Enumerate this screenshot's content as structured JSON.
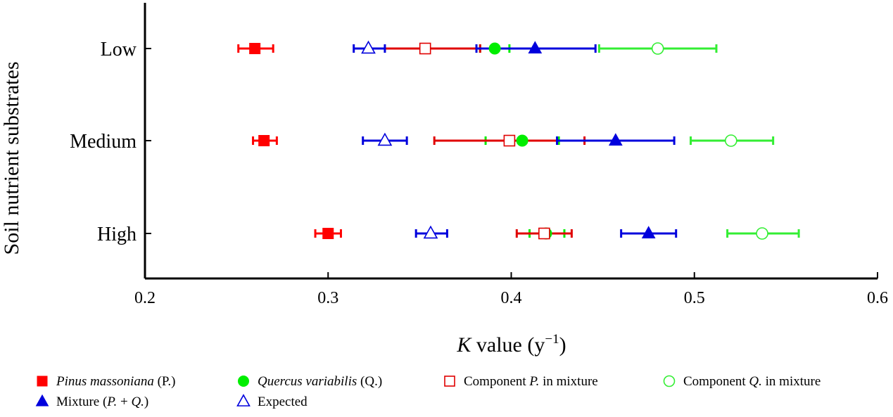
{
  "chart_data": {
    "type": "scatter",
    "orientation": "horizontal",
    "xlabel": {
      "italic": "K",
      "rest": " value (y",
      "sup": "−1",
      "close": ")"
    },
    "ylabel": "Soil nutrient substrates",
    "xlim": [
      0.2,
      0.6
    ],
    "xticks": [
      "0.2",
      "0.3",
      "0.4",
      "0.5",
      "0.6"
    ],
    "categories": [
      "Low",
      "Medium",
      "High"
    ],
    "grid": false,
    "legend_position": "bottom",
    "series": [
      {
        "name": "Pinus massoniana (P.)",
        "legend_parts": [
          {
            "text": "Pinus massoniana",
            "italic": true
          },
          {
            "text": " (P.)",
            "italic": false
          }
        ],
        "color": "#ff0000",
        "marker": "square",
        "filled": true,
        "points": [
          {
            "category": "Low",
            "value": 0.26,
            "err_low": 0.251,
            "err_high": 0.27
          },
          {
            "category": "Medium",
            "value": 0.265,
            "err_low": 0.259,
            "err_high": 0.272
          },
          {
            "category": "High",
            "value": 0.3,
            "err_low": 0.293,
            "err_high": 0.307
          }
        ]
      },
      {
        "name": "Quercus variabilis (Q.)",
        "legend_parts": [
          {
            "text": "Quercus variabilis",
            "italic": true
          },
          {
            "text": " (Q.)",
            "italic": false
          }
        ],
        "color": "#00ee00",
        "marker": "circle",
        "filled": true,
        "points": [
          {
            "category": "Low",
            "value": 0.391,
            "err_low": 0.383,
            "err_high": 0.399
          },
          {
            "category": "Medium",
            "value": 0.406,
            "err_low": 0.386,
            "err_high": 0.426
          },
          {
            "category": "High",
            "value": 0.419,
            "err_low": 0.41,
            "err_high": 0.429
          }
        ]
      },
      {
        "name": "Component P. in mixture",
        "legend_parts": [
          {
            "text": "Component ",
            "italic": false
          },
          {
            "text": "P.",
            "italic": true
          },
          {
            "text": " in mixture",
            "italic": false
          }
        ],
        "color": "#e00000",
        "marker": "square",
        "filled": false,
        "points": [
          {
            "category": "Low",
            "value": 0.353,
            "err_low": 0.322,
            "err_high": 0.383
          },
          {
            "category": "Medium",
            "value": 0.399,
            "err_low": 0.358,
            "err_high": 0.44
          },
          {
            "category": "High",
            "value": 0.418,
            "err_low": 0.403,
            "err_high": 0.433
          }
        ]
      },
      {
        "name": "Component Q. in mixture",
        "legend_parts": [
          {
            "text": "Component ",
            "italic": false
          },
          {
            "text": "Q.",
            "italic": true
          },
          {
            "text": " in mixture",
            "italic": false
          }
        ],
        "color": "#33ee33",
        "marker": "circle",
        "filled": false,
        "points": [
          {
            "category": "Low",
            "value": 0.48,
            "err_low": 0.448,
            "err_high": 0.512
          },
          {
            "category": "Medium",
            "value": 0.52,
            "err_low": 0.498,
            "err_high": 0.543
          },
          {
            "category": "High",
            "value": 0.537,
            "err_low": 0.518,
            "err_high": 0.557
          }
        ]
      },
      {
        "name": "Mixture (P. + Q.)",
        "legend_parts": [
          {
            "text": "Mixture (",
            "italic": false
          },
          {
            "text": "P.",
            "italic": true
          },
          {
            "text": " + ",
            "italic": false
          },
          {
            "text": "Q.",
            "italic": true
          },
          {
            "text": ")",
            "italic": false
          }
        ],
        "color": "#0000dd",
        "marker": "triangle",
        "filled": true,
        "points": [
          {
            "category": "Low",
            "value": 0.413,
            "err_low": 0.381,
            "err_high": 0.446
          },
          {
            "category": "Medium",
            "value": 0.457,
            "err_low": 0.425,
            "err_high": 0.489
          },
          {
            "category": "High",
            "value": 0.475,
            "err_low": 0.46,
            "err_high": 0.49
          }
        ]
      },
      {
        "name": "Expected",
        "legend_parts": [
          {
            "text": "Expected",
            "italic": false
          }
        ],
        "color": "#0000dd",
        "marker": "triangle",
        "filled": false,
        "points": [
          {
            "category": "Low",
            "value": 0.322,
            "err_low": 0.314,
            "err_high": 0.331
          },
          {
            "category": "Medium",
            "value": 0.331,
            "err_low": 0.319,
            "err_high": 0.343
          },
          {
            "category": "High",
            "value": 0.356,
            "err_low": 0.348,
            "err_high": 0.365
          }
        ]
      }
    ]
  }
}
